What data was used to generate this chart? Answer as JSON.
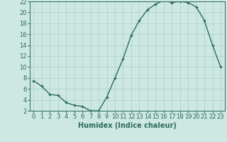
{
  "x": [
    0,
    1,
    2,
    3,
    4,
    5,
    6,
    7,
    8,
    9,
    10,
    11,
    12,
    13,
    14,
    15,
    16,
    17,
    18,
    19,
    20,
    21,
    22,
    23
  ],
  "y": [
    7.5,
    6.5,
    5.0,
    4.8,
    3.5,
    3.0,
    2.8,
    2.0,
    2.0,
    4.5,
    8.0,
    11.5,
    15.8,
    18.5,
    20.5,
    21.5,
    22.2,
    21.8,
    22.0,
    21.8,
    21.0,
    18.5,
    14.0,
    10.0
  ],
  "line_color": "#2e6b5e",
  "marker": "D",
  "marker_size": 2.2,
  "bg_color": "#cce8e0",
  "grid_color": "#aacfc8",
  "xlabel": "Humidex (Indice chaleur)",
  "ylim": [
    2,
    22
  ],
  "xlim": [
    -0.5,
    23.5
  ],
  "yticks": [
    2,
    4,
    6,
    8,
    10,
    12,
    14,
    16,
    18,
    20,
    22
  ],
  "xticks": [
    0,
    1,
    2,
    3,
    4,
    5,
    6,
    7,
    8,
    9,
    10,
    11,
    12,
    13,
    14,
    15,
    16,
    17,
    18,
    19,
    20,
    21,
    22,
    23
  ],
  "xlabel_fontsize": 7,
  "tick_fontsize": 6,
  "line_width": 1.0
}
